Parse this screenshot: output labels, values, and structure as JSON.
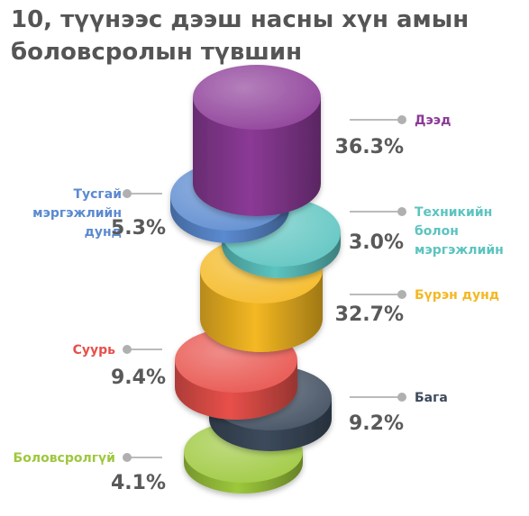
{
  "title_lines": [
    "10, түүнээс дээш насны хүн амын",
    "боловсролын түвшин"
  ],
  "chart_data": {
    "type": "3d-stacked-cylinders",
    "title": "10, түүнээс дээш насны хүн амын боловсролын түвшин",
    "unit": "%",
    "series": [
      {
        "name": "Дээд",
        "label_lines": [
          "Дээд"
        ],
        "value": 36.3,
        "value_label": "36.3%",
        "color": "#8B3A96",
        "side": "right"
      },
      {
        "name": "Тусгай мэргэжлийн дунд",
        "label_lines": [
          "Тусгай",
          "мэргэжлийн",
          "дунд"
        ],
        "value": 5.3,
        "value_label": "5.3%",
        "color": "#5B8AD0",
        "side": "left"
      },
      {
        "name": "Техникийн болон мэргэжлийн",
        "label_lines": [
          "Техникийн",
          "болон",
          "мэргэжлийн"
        ],
        "value": 3.0,
        "value_label": "3.0%",
        "color": "#5CC4C0",
        "side": "right"
      },
      {
        "name": "Бүрэн дунд",
        "label_lines": [
          "Бүрэн дунд"
        ],
        "value": 32.7,
        "value_label": "32.7%",
        "color": "#F4B822",
        "side": "right"
      },
      {
        "name": "Суурь",
        "label_lines": [
          "Суурь"
        ],
        "value": 9.4,
        "value_label": "9.4%",
        "color": "#E8504A",
        "side": "left"
      },
      {
        "name": "Бага",
        "label_lines": [
          "Бага"
        ],
        "value": 9.2,
        "value_label": "9.2%",
        "color": "#3C4A5C",
        "side": "right"
      },
      {
        "name": "Боловсролгүй",
        "label_lines": [
          "Боловсролгүй"
        ],
        "value": 4.1,
        "value_label": "4.1%",
        "color": "#9DC83C",
        "side": "left"
      }
    ]
  },
  "colors": {
    "title": "#555555",
    "value_text": "#595959",
    "leader": "#bbbbbb"
  }
}
